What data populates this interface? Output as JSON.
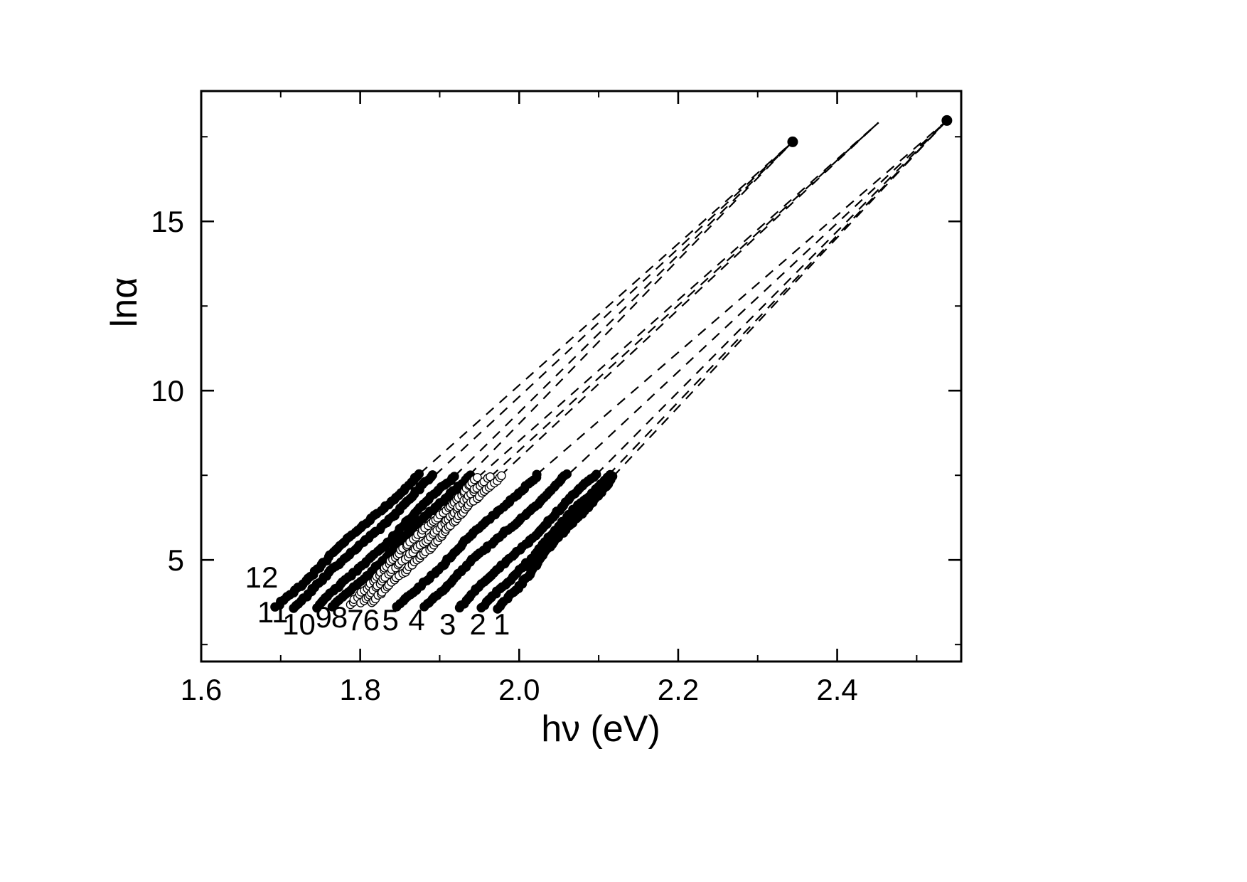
{
  "figure": {
    "background_color": "#ffffff",
    "ink_color": "#000000"
  },
  "chart_data": {
    "type": "scatter",
    "title": "",
    "xlabel": "hν (eV)",
    "ylabel": "lnα",
    "xlim": [
      1.6,
      2.556
    ],
    "ylim": [
      2.0,
      18.85
    ],
    "xticks": [
      1.6,
      1.8,
      2.0,
      2.2,
      2.4
    ],
    "xtick_labels": [
      "1.6",
      "1.8",
      "2.0",
      "2.2",
      "2.4"
    ],
    "x_minor_ticks": [
      1.7,
      1.9,
      2.1,
      2.3,
      2.5
    ],
    "yticks": [
      5,
      10,
      15
    ],
    "ytick_labels": [
      "5",
      "10",
      "15"
    ],
    "y_minor_ticks": [
      2.5,
      7.5,
      12.5,
      17.5
    ],
    "grid": false,
    "legend": "none",
    "series": [
      {
        "label": "12",
        "marker": "filled",
        "x_start": 1.694,
        "lna_start": 3.62,
        "x_end": 1.875,
        "lna_end": 7.55,
        "focus_index": 0,
        "label_x": 1.676,
        "label_lna": 4.48
      },
      {
        "label": "11",
        "marker": "filled",
        "x_start": 1.715,
        "lna_start": 3.58,
        "x_end": 1.894,
        "lna_end": 7.5,
        "focus_index": 0,
        "label_x": 1.69,
        "label_lna": 3.45
      },
      {
        "label": "10",
        "marker": "filled",
        "x_start": 1.747,
        "lna_start": 3.6,
        "x_end": 1.919,
        "lna_end": 7.48,
        "focus_index": 0,
        "label_x": 1.723,
        "label_lna": 3.09
      },
      {
        "label": "9",
        "marker": "filled",
        "x_start": 1.767,
        "lna_start": 3.64,
        "x_end": 1.937,
        "lna_end": 7.5,
        "focus_index": 0,
        "label_x": 1.754,
        "label_lna": 3.3
      },
      {
        "label": "8",
        "marker": "open",
        "x_start": 1.786,
        "lna_start": 3.7,
        "x_end": 1.948,
        "lna_end": 7.44,
        "focus_index": 1,
        "label_x": 1.774,
        "label_lna": 3.3
      },
      {
        "label": "7",
        "marker": "open",
        "x_start": 1.8,
        "lna_start": 3.72,
        "x_end": 1.964,
        "lna_end": 7.46,
        "focus_index": 1,
        "label_x": 1.794,
        "label_lna": 3.22
      },
      {
        "label": "6",
        "marker": "open",
        "x_start": 1.817,
        "lna_start": 3.74,
        "x_end": 1.976,
        "lna_end": 7.48,
        "focus_index": 1,
        "label_x": 1.814,
        "label_lna": 3.22
      },
      {
        "label": "5",
        "marker": "filled",
        "x_start": 1.848,
        "lna_start": 3.64,
        "x_end": 2.022,
        "lna_end": 7.52,
        "focus_index": 2,
        "label_x": 1.838,
        "label_lna": 3.22
      },
      {
        "label": "4",
        "marker": "filled",
        "x_start": 1.879,
        "lna_start": 3.62,
        "x_end": 2.063,
        "lna_end": 7.55,
        "focus_index": 2,
        "label_x": 1.871,
        "label_lna": 3.22
      },
      {
        "label": "3",
        "marker": "filled",
        "x_start": 1.924,
        "lna_start": 3.58,
        "x_end": 2.097,
        "lna_end": 7.52,
        "focus_index": 2,
        "label_x": 1.91,
        "label_lna": 3.09
      },
      {
        "label": "2",
        "marker": "filled",
        "x_start": 1.955,
        "lna_start": 3.6,
        "x_end": 2.112,
        "lna_end": 7.5,
        "focus_index": 2,
        "label_x": 1.948,
        "label_lna": 3.09
      },
      {
        "label": "1",
        "marker": "filled",
        "x_start": 1.973,
        "lna_start": 3.56,
        "x_end": 2.118,
        "lna_end": 7.46,
        "focus_index": 2,
        "label_x": 1.978,
        "label_lna": 3.09
      }
    ],
    "foci": [
      {
        "x": 2.344,
        "lna": 17.35,
        "dot": true
      },
      {
        "x": 2.452,
        "lna": 17.92,
        "dot": false
      },
      {
        "x": 2.538,
        "lna": 17.98,
        "dot": true
      }
    ]
  }
}
